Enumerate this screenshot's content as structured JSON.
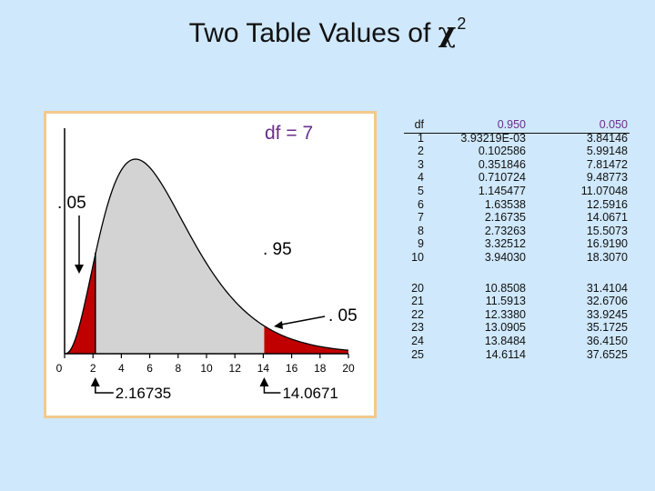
{
  "title": {
    "text": "Two Table Values of ",
    "symbol": "χ",
    "superscript": "2"
  },
  "chart": {
    "df_label": "df = 7",
    "x_ticks": [
      "0",
      "2",
      "4",
      "6",
      "8",
      "10",
      "12",
      "14",
      "16",
      "18",
      "20"
    ],
    "left_tail_label": ". 05",
    "center_label": ". 95",
    "right_tail_label": ". 05",
    "left_critical": "2.16735",
    "right_critical": "14.0671",
    "colors": {
      "fill": "#d3d3d3",
      "tail": "#c00000",
      "axis": "#000000"
    }
  },
  "chart_data": {
    "type": "area",
    "distribution": "chi-square",
    "df": 7,
    "xlim": [
      0,
      20
    ],
    "x_ticks": [
      0,
      2,
      4,
      6,
      8,
      10,
      12,
      14,
      16,
      18,
      20
    ],
    "left_critical": 2.16735,
    "right_critical": 14.0671,
    "left_tail_area": 0.05,
    "center_area": 0.95,
    "right_tail_area": 0.05
  },
  "table": {
    "headers": {
      "df": "df",
      "p950": "0.950",
      "p050": "0.050"
    },
    "rows_a": [
      {
        "df": "1",
        "p950": "3.93219E-03",
        "p050": "3.84146"
      },
      {
        "df": "2",
        "p950": "0.102586",
        "p050": "5.99148"
      },
      {
        "df": "3",
        "p950": "0.351846",
        "p050": "7.81472"
      },
      {
        "df": "4",
        "p950": "0.710724",
        "p050": "9.48773"
      },
      {
        "df": "5",
        "p950": "1.145477",
        "p050": "11.07048"
      },
      {
        "df": "6",
        "p950": "1.63538",
        "p050": "12.5916"
      },
      {
        "df": "7",
        "p950": "2.16735",
        "p050": "14.0671"
      },
      {
        "df": "8",
        "p950": "2.73263",
        "p050": "15.5073"
      },
      {
        "df": "9",
        "p950": "3.32512",
        "p050": "16.9190"
      },
      {
        "df": "10",
        "p950": "3.94030",
        "p050": "18.3070"
      }
    ],
    "rows_b": [
      {
        "df": "20",
        "p950": "10.8508",
        "p050": "31.4104"
      },
      {
        "df": "21",
        "p950": "11.5913",
        "p050": "32.6706"
      },
      {
        "df": "22",
        "p950": "12.3380",
        "p050": "33.9245"
      },
      {
        "df": "23",
        "p950": "13.0905",
        "p050": "35.1725"
      },
      {
        "df": "24",
        "p950": "13.8484",
        "p050": "36.4150"
      },
      {
        "df": "25",
        "p950": "14.6114",
        "p050": "37.6525"
      }
    ]
  }
}
